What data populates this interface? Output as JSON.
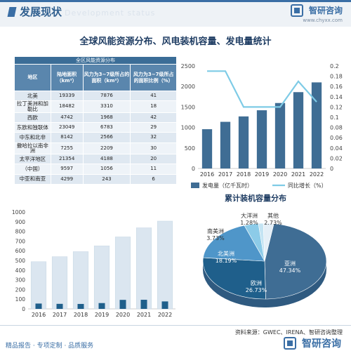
{
  "header": {
    "section_title": "发展现状",
    "ghost_text": "Development status",
    "brand_name": "智研咨询",
    "brand_url": "www.chyxx.com"
  },
  "main_title": "全球风能资源分布、风电装机容量、发电量统计",
  "table": {
    "caption": "全区风能资源分布",
    "headers": [
      "地区",
      "陆地面积（km²）",
      "风力为3~7级所占的面积（km²）",
      "风力为3~7级所占的面积比例（%）"
    ],
    "rows": [
      [
        "北美",
        "19339",
        "7876",
        "41"
      ],
      [
        "拉丁美洲和加勒比",
        "18482",
        "3310",
        "18"
      ],
      [
        "西欧",
        "4742",
        "1968",
        "42"
      ],
      [
        "东欧和独联体",
        "23049",
        "6783",
        "29"
      ],
      [
        "中东和北非",
        "8142",
        "2566",
        "32"
      ],
      [
        "撒哈拉以南非洲",
        "7255",
        "2209",
        "30"
      ],
      [
        "太平洋地区",
        "21354",
        "4188",
        "20"
      ],
      [
        "（中国）",
        "9597",
        "1056",
        "11"
      ],
      [
        "中亚和南亚",
        "4299",
        "243",
        "6"
      ]
    ]
  },
  "pie_title": "累计装机容量分布",
  "footer": {
    "source": "资料来源：GWEC、IRENA、智研咨询整理",
    "left": "精品报告 · 专项定制 · 品质服务",
    "brand_name": "智研咨询"
  },
  "colors": {
    "accent": "#3a6ea5",
    "bar_dark": "#3f6d94",
    "line_light": "#7ecbe6",
    "bar_light": "#dbe6f0",
    "bar_new": "#1f5f8b"
  },
  "chart_data": [
    {
      "type": "bar",
      "id": "generation",
      "categories": [
        "2016",
        "2017",
        "2018",
        "2019",
        "2020",
        "2021",
        "2022"
      ],
      "series": [
        {
          "name": "发电量（亿千瓦时）",
          "axis": "left",
          "values": [
            958,
            1138,
            1270,
            1420,
            1597,
            1862,
            2100
          ]
        },
        {
          "name": "同比增长（%）",
          "axis": "right",
          "kind": "line",
          "values": [
            0.19,
            0.19,
            0.12,
            0.12,
            0.12,
            0.17,
            0.13
          ]
        }
      ],
      "ylim": [
        0,
        2500
      ],
      "y_ticks": [
        "0",
        "500",
        "1000",
        "1500",
        "2000",
        "2500"
      ],
      "y2lim": [
        0,
        0.2
      ],
      "y2_ticks": [
        "0",
        "0.02",
        "0.04",
        "0.06",
        "0.08",
        "0.1",
        "0.12",
        "0.14",
        "0.16",
        "0.18",
        "0.2"
      ],
      "legend": "bottom"
    },
    {
      "type": "bar",
      "id": "capacity",
      "categories": [
        "2016",
        "2017",
        "2018",
        "2019",
        "2020",
        "2021",
        "2022"
      ],
      "series": [
        {
          "name": "累计装机容量（GW）",
          "values": [
            487,
            539,
            591,
            651,
            743,
            837,
            906
          ]
        },
        {
          "name": "新增装机容量（GW）",
          "values": [
            55,
            52,
            51,
            60,
            93,
            94,
            77
          ]
        }
      ],
      "ylim": [
        0,
        1000
      ],
      "y_ticks": [
        "0",
        "100",
        "200",
        "300",
        "400",
        "500",
        "600",
        "700",
        "800",
        "900",
        "1000"
      ],
      "legend": "bottom"
    },
    {
      "type": "pie",
      "id": "distribution",
      "title": "累计装机容量分布",
      "slices": [
        {
          "label": "亚洲",
          "value": 47.34,
          "text": "47.34%",
          "color": "#3f6d94"
        },
        {
          "label": "欧洲",
          "value": 26.73,
          "text": "26.73%",
          "color": "#1f5f8b"
        },
        {
          "label": "北美洲",
          "value": 18.19,
          "text": "18.19%",
          "color": "#4f96c9"
        },
        {
          "label": "南美洲",
          "value": 3.73,
          "text": "3.73%",
          "color": "#8ccbe8"
        },
        {
          "label": "大洋洲",
          "value": 1.28,
          "text": "1.28%",
          "color": "#c4e4f3"
        },
        {
          "label": "其他",
          "value": 2.73,
          "text": "2.73%",
          "color": "#e4eff7"
        }
      ]
    }
  ]
}
